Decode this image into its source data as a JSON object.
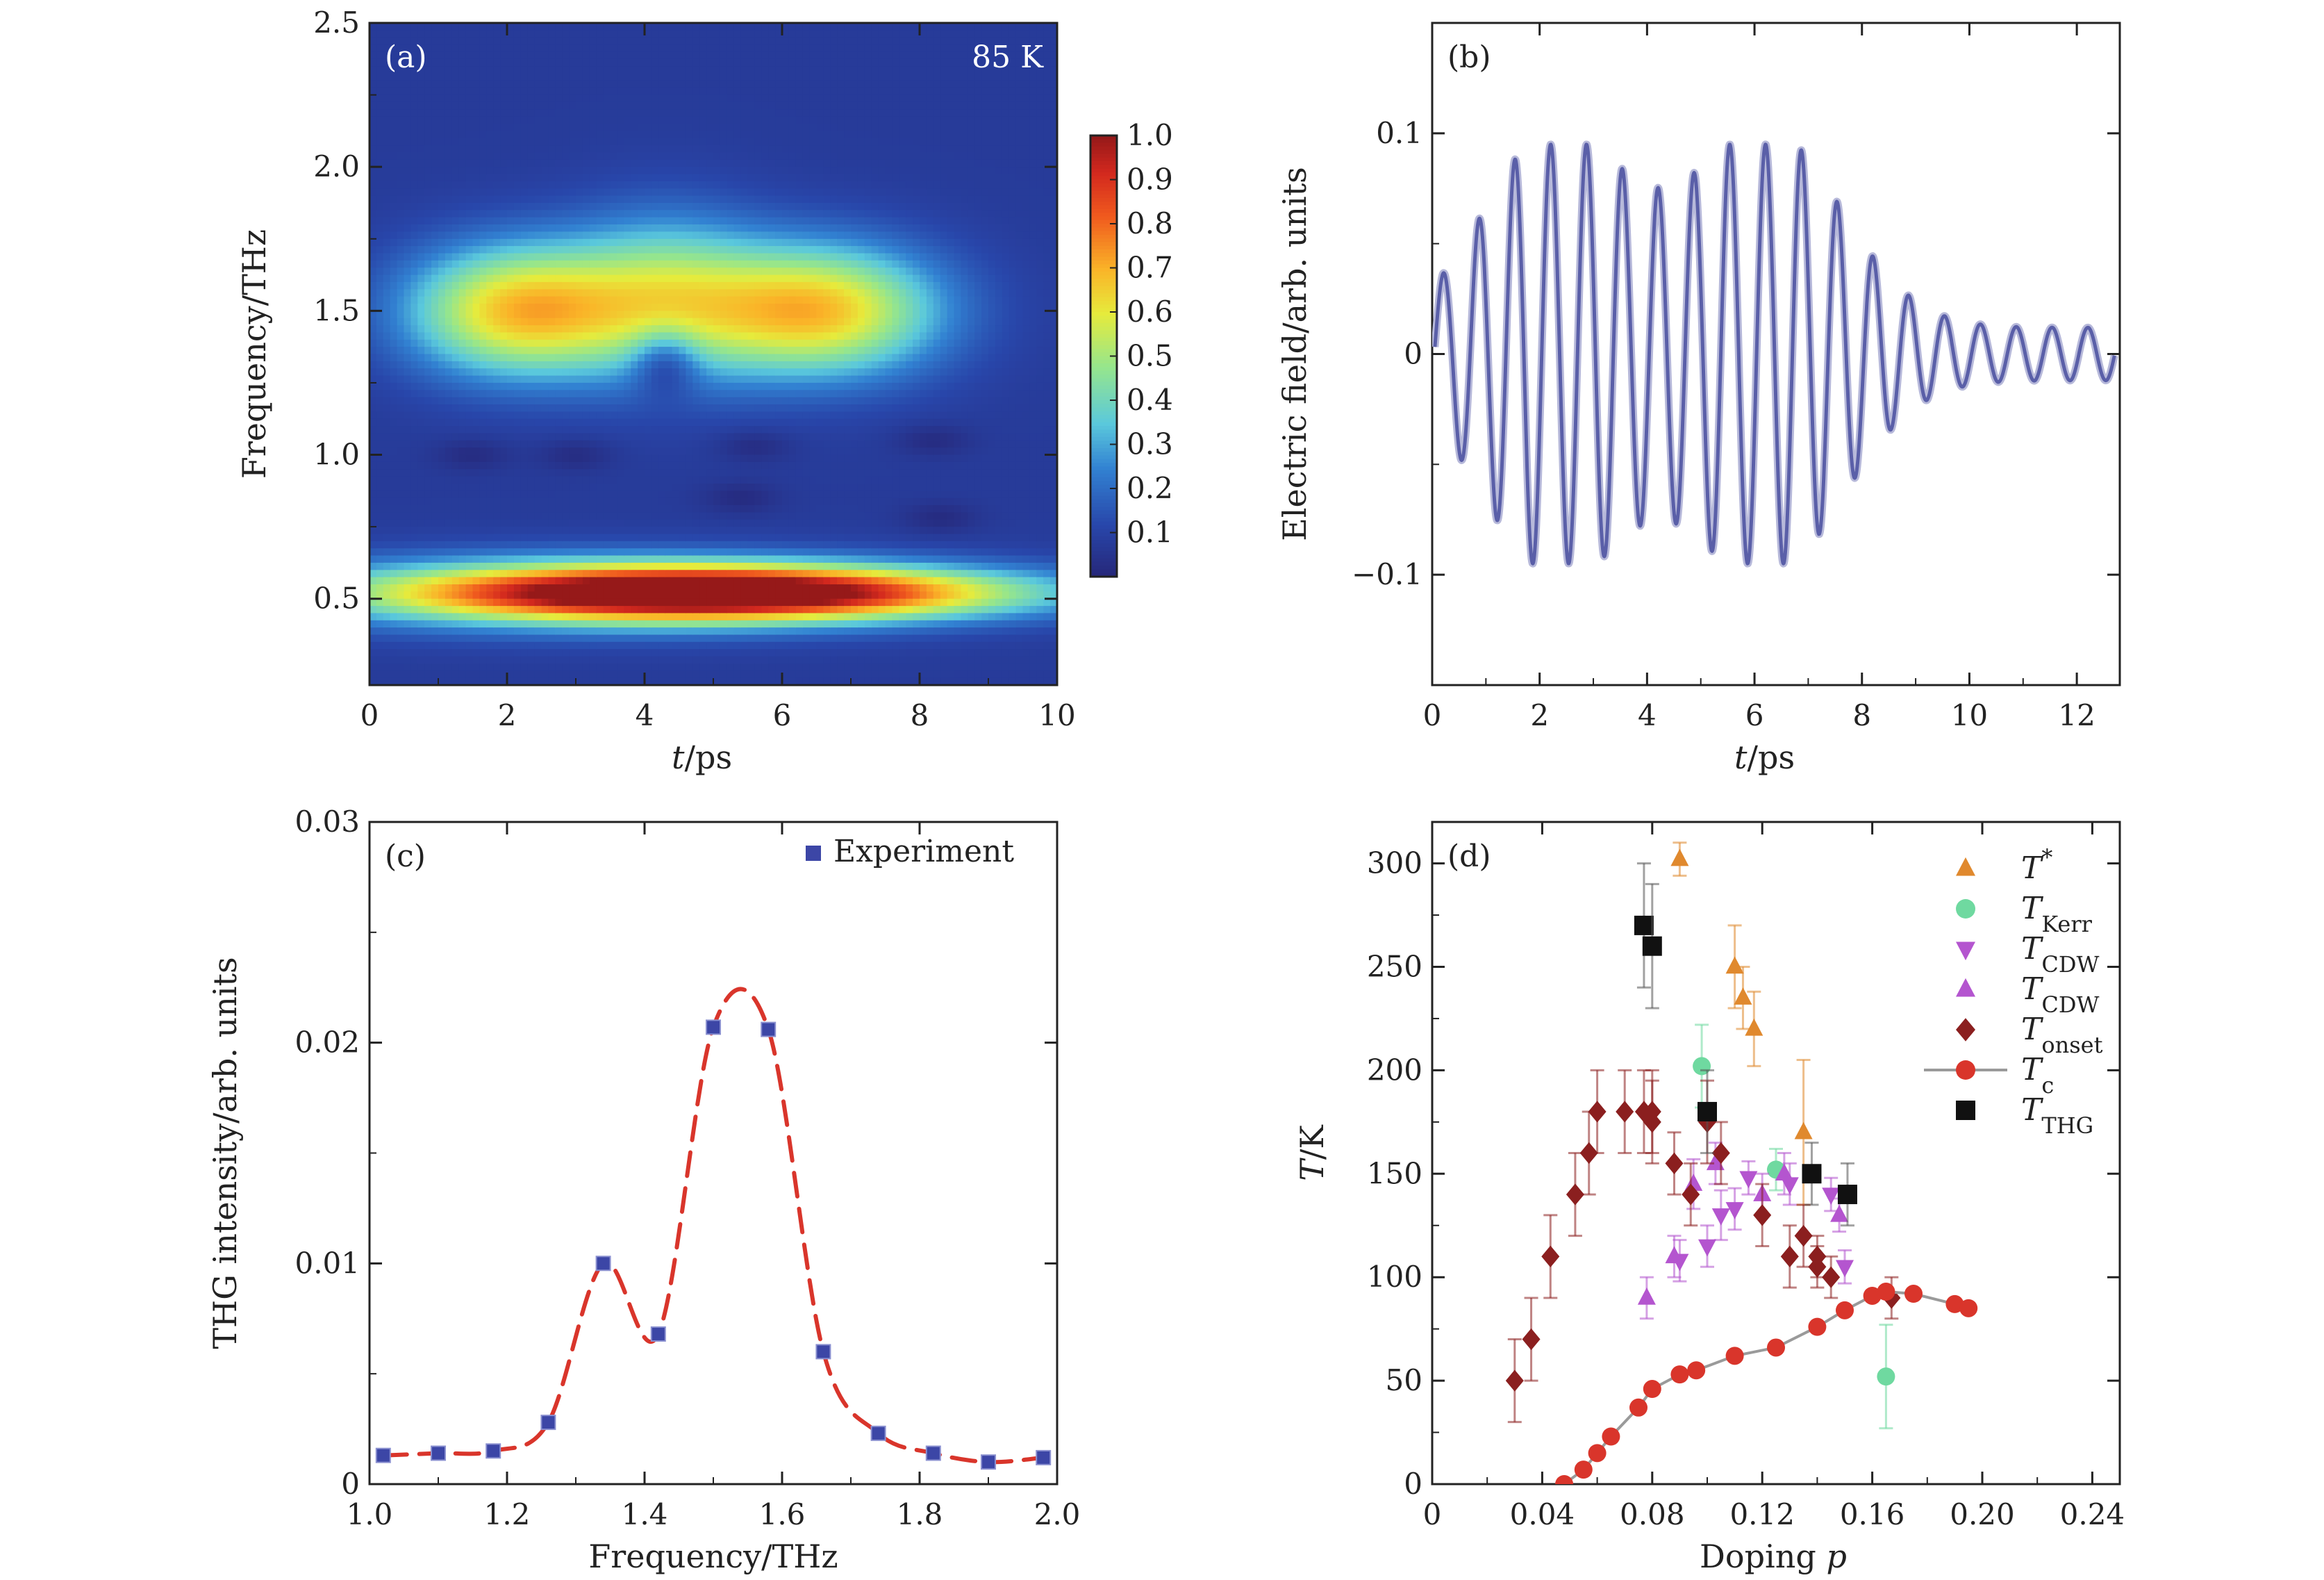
{
  "chart_data": [
    {
      "panel": "(a)",
      "type": "heatmap",
      "annotation": "85 K",
      "xlabel_italic": "t",
      "xlabel_unit": "/ps",
      "ylabel": "Frequency/THz",
      "xlim": [
        0,
        10
      ],
      "ylim": [
        0.2,
        2.5
      ],
      "xticks": [
        "0",
        "2",
        "4",
        "6",
        "8",
        "10"
      ],
      "yticks": [
        "0.5",
        "1.0",
        "1.5",
        "2.0",
        "2.5"
      ],
      "colorbar": {
        "range": [
          0,
          1.0
        ],
        "ticks": [
          "0.1",
          "0.2",
          "0.3",
          "0.4",
          "0.5",
          "0.6",
          "0.7",
          "0.8",
          "0.9",
          "1.0"
        ]
      },
      "features": [
        {
          "t": 2.2,
          "f": 1.5,
          "intensity": 0.6,
          "st": 1.15,
          "sf": 0.16
        },
        {
          "t": 6.5,
          "f": 1.5,
          "intensity": 0.6,
          "st": 1.25,
          "sf": 0.16
        },
        {
          "t": 4.3,
          "f": 1.55,
          "intensity": 0.35,
          "st": 1.0,
          "sf": 0.2
        },
        {
          "t": 5.2,
          "f": 0.52,
          "intensity": 0.95,
          "st": 2.9,
          "sf": 0.065
        },
        {
          "t": 3.0,
          "f": 0.52,
          "intensity": 0.35,
          "st": 3.2,
          "sf": 0.09
        }
      ]
    },
    {
      "panel": "(b)",
      "type": "line",
      "xlabel_italic": "t",
      "xlabel_unit": "/ps",
      "ylabel": "Electric field/arb. units",
      "xlim": [
        0,
        12.8
      ],
      "ylim": [
        -0.15,
        0.15
      ],
      "xticks": [
        "0",
        "2",
        "4",
        "6",
        "8",
        "10",
        "12"
      ],
      "yticks": [
        "0.1",
        "0",
        "−0.1"
      ],
      "line_color": "#5a5fa8",
      "waveform": {
        "frequency_THz": 1.5,
        "peaks": [
          {
            "t": 2.3,
            "a": 0.09,
            "w": 1.3
          },
          {
            "t": 6.2,
            "a": 0.09,
            "w": 1.4
          }
        ],
        "tail_amplitude": 0.012
      }
    },
    {
      "panel": "(c)",
      "type": "scatter",
      "xlabel": "Frequency/THz",
      "ylabel": "THG intensity/arb. units",
      "xlim": [
        1.0,
        2.0
      ],
      "ylim": [
        0,
        0.03
      ],
      "xticks": [
        "1.0",
        "1.2",
        "1.4",
        "1.6",
        "1.8",
        "2.0"
      ],
      "yticks": [
        "0",
        "0.01",
        "0.02",
        "0.03"
      ],
      "legend": [
        "Experiment"
      ],
      "marker_color": "#3c46a6",
      "fit_color": "#d9352b",
      "x": [
        1.02,
        1.1,
        1.18,
        1.26,
        1.34,
        1.42,
        1.5,
        1.58,
        1.66,
        1.74,
        1.82,
        1.9,
        1.98
      ],
      "y": [
        0.0013,
        0.0014,
        0.0015,
        0.0028,
        0.01,
        0.0068,
        0.0207,
        0.0206,
        0.006,
        0.0023,
        0.0014,
        0.001,
        0.0012
      ]
    },
    {
      "panel": "(d)",
      "type": "scatter",
      "xlabel": "Doping",
      "xlabel_italic": "p",
      "ylabel_italic": "T",
      "ylabel_unit": "/K",
      "xlim": [
        0,
        0.25
      ],
      "ylim": [
        0,
        320
      ],
      "xticks": [
        "0",
        "0.04",
        "0.08",
        "0.12",
        "0.16",
        "0.20",
        "0.24"
      ],
      "yticks": [
        "0",
        "50",
        "100",
        "150",
        "200",
        "250",
        "300"
      ],
      "series": [
        {
          "name": "T",
          "sup": "*",
          "marker": "triangle-up",
          "color": "#e0892e",
          "points": [
            [
              0.09,
              302,
              8
            ],
            [
              0.11,
              250,
              20
            ],
            [
              0.113,
              235,
              15
            ],
            [
              0.117,
              220,
              18
            ],
            [
              0.135,
              170,
              35
            ]
          ]
        },
        {
          "name": "T",
          "sub": "Kerr",
          "marker": "circle",
          "color": "#6fd9a0",
          "points": [
            [
              0.098,
              202,
              20
            ],
            [
              0.165,
              52,
              25
            ],
            [
              0.125,
              152,
              10
            ]
          ]
        },
        {
          "name": "T",
          "sub": "CDW",
          "marker": "triangle-down",
          "color": "#b455cf",
          "points": [
            [
              0.09,
              108,
              10
            ],
            [
              0.1,
              115,
              10
            ],
            [
              0.105,
              130,
              12
            ],
            [
              0.11,
              133,
              10
            ],
            [
              0.115,
              148,
              8
            ],
            [
              0.13,
              145,
              10
            ],
            [
              0.145,
              140,
              8
            ],
            [
              0.15,
              105,
              8
            ]
          ]
        },
        {
          "name": "T",
          "sub": "CDW",
          "marker": "triangle-up",
          "color": "#b455cf",
          "points": [
            [
              0.078,
              90,
              10
            ],
            [
              0.088,
              110,
              10
            ],
            [
              0.095,
              145,
              12
            ],
            [
              0.103,
              155,
              10
            ],
            [
              0.12,
              140,
              10
            ],
            [
              0.128,
              150,
              10
            ],
            [
              0.148,
              130,
              8
            ]
          ]
        },
        {
          "name": "T",
          "sub": "onset",
          "marker": "diamond",
          "color": "#8b1f1f",
          "points": [
            [
              0.03,
              50,
              20
            ],
            [
              0.036,
              70,
              20
            ],
            [
              0.043,
              110,
              20
            ],
            [
              0.052,
              140,
              20
            ],
            [
              0.057,
              160,
              20
            ],
            [
              0.06,
              180,
              20
            ],
            [
              0.07,
              180,
              20
            ],
            [
              0.077,
              180,
              20
            ],
            [
              0.08,
              175,
              20
            ],
            [
              0.08,
              180,
              20
            ],
            [
              0.088,
              155,
              15
            ],
            [
              0.094,
              140,
              15
            ],
            [
              0.1,
              175,
              20
            ],
            [
              0.105,
              160,
              15
            ],
            [
              0.12,
              130,
              15
            ],
            [
              0.13,
              110,
              15
            ],
            [
              0.135,
              120,
              15
            ],
            [
              0.14,
              105,
              10
            ],
            [
              0.14,
              110,
              10
            ],
            [
              0.145,
              100,
              10
            ],
            [
              0.167,
              90,
              10
            ]
          ]
        },
        {
          "name": "T",
          "sub": "c",
          "marker": "circle",
          "color": "#d9352b",
          "line": true,
          "points": [
            [
              0.048,
              0
            ],
            [
              0.055,
              7
            ],
            [
              0.06,
              15
            ],
            [
              0.065,
              23
            ],
            [
              0.075,
              37
            ],
            [
              0.08,
              46
            ],
            [
              0.09,
              53
            ],
            [
              0.096,
              55
            ],
            [
              0.11,
              62
            ],
            [
              0.125,
              66
            ],
            [
              0.14,
              76
            ],
            [
              0.15,
              84
            ],
            [
              0.16,
              91
            ],
            [
              0.165,
              93
            ],
            [
              0.175,
              92
            ],
            [
              0.19,
              87
            ],
            [
              0.195,
              85
            ]
          ]
        },
        {
          "name": "T",
          "sub": "THG",
          "marker": "square",
          "color": "#111111",
          "points": [
            [
              0.077,
              270,
              30
            ],
            [
              0.08,
              260,
              30
            ],
            [
              0.1,
              180,
              20
            ],
            [
              0.138,
              150,
              15
            ],
            [
              0.151,
              140,
              15
            ]
          ]
        }
      ]
    }
  ]
}
